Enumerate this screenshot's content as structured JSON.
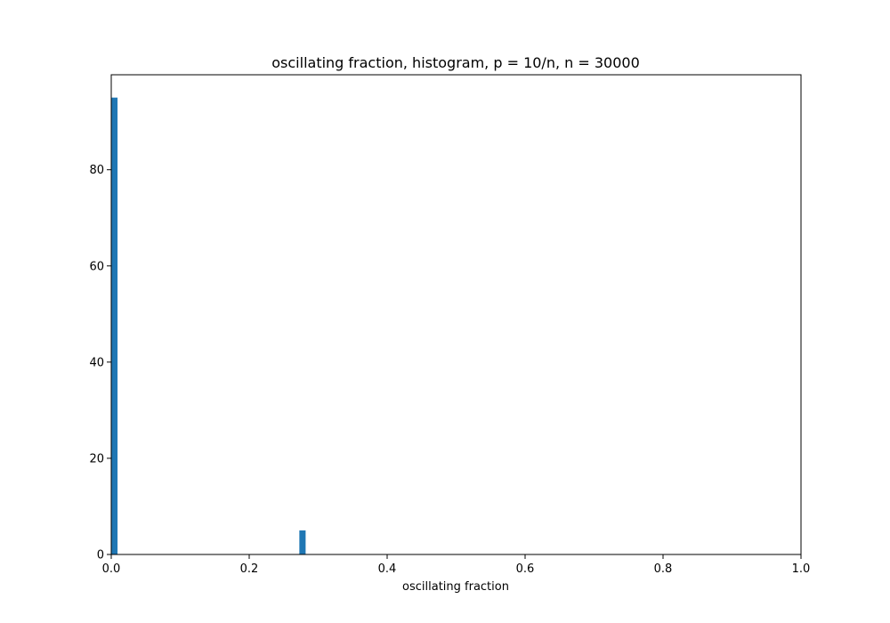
{
  "chart_data": {
    "type": "bar",
    "title": "oscillating fraction, histogram, p = 10/n, n = 30000",
    "xlabel": "oscillating fraction",
    "ylabel": "",
    "xlim": [
      0.0,
      1.0
    ],
    "ylim": [
      0,
      99.75
    ],
    "xticks": [
      0.0,
      0.2,
      0.4,
      0.6,
      0.8,
      1.0
    ],
    "xtick_labels": [
      "0.0",
      "0.2",
      "0.4",
      "0.6",
      "0.8",
      "1.0"
    ],
    "yticks": [
      0,
      20,
      40,
      60,
      80
    ],
    "ytick_labels": [
      "0",
      "20",
      "40",
      "60",
      "80"
    ],
    "bins": [
      {
        "x_start": 0.0,
        "x_end": 0.0091,
        "count": 95
      },
      {
        "x_start": 0.2727,
        "x_end": 0.2818,
        "count": 5
      }
    ],
    "grid": false,
    "legend": "none",
    "bar_color": "#1f77b4"
  }
}
